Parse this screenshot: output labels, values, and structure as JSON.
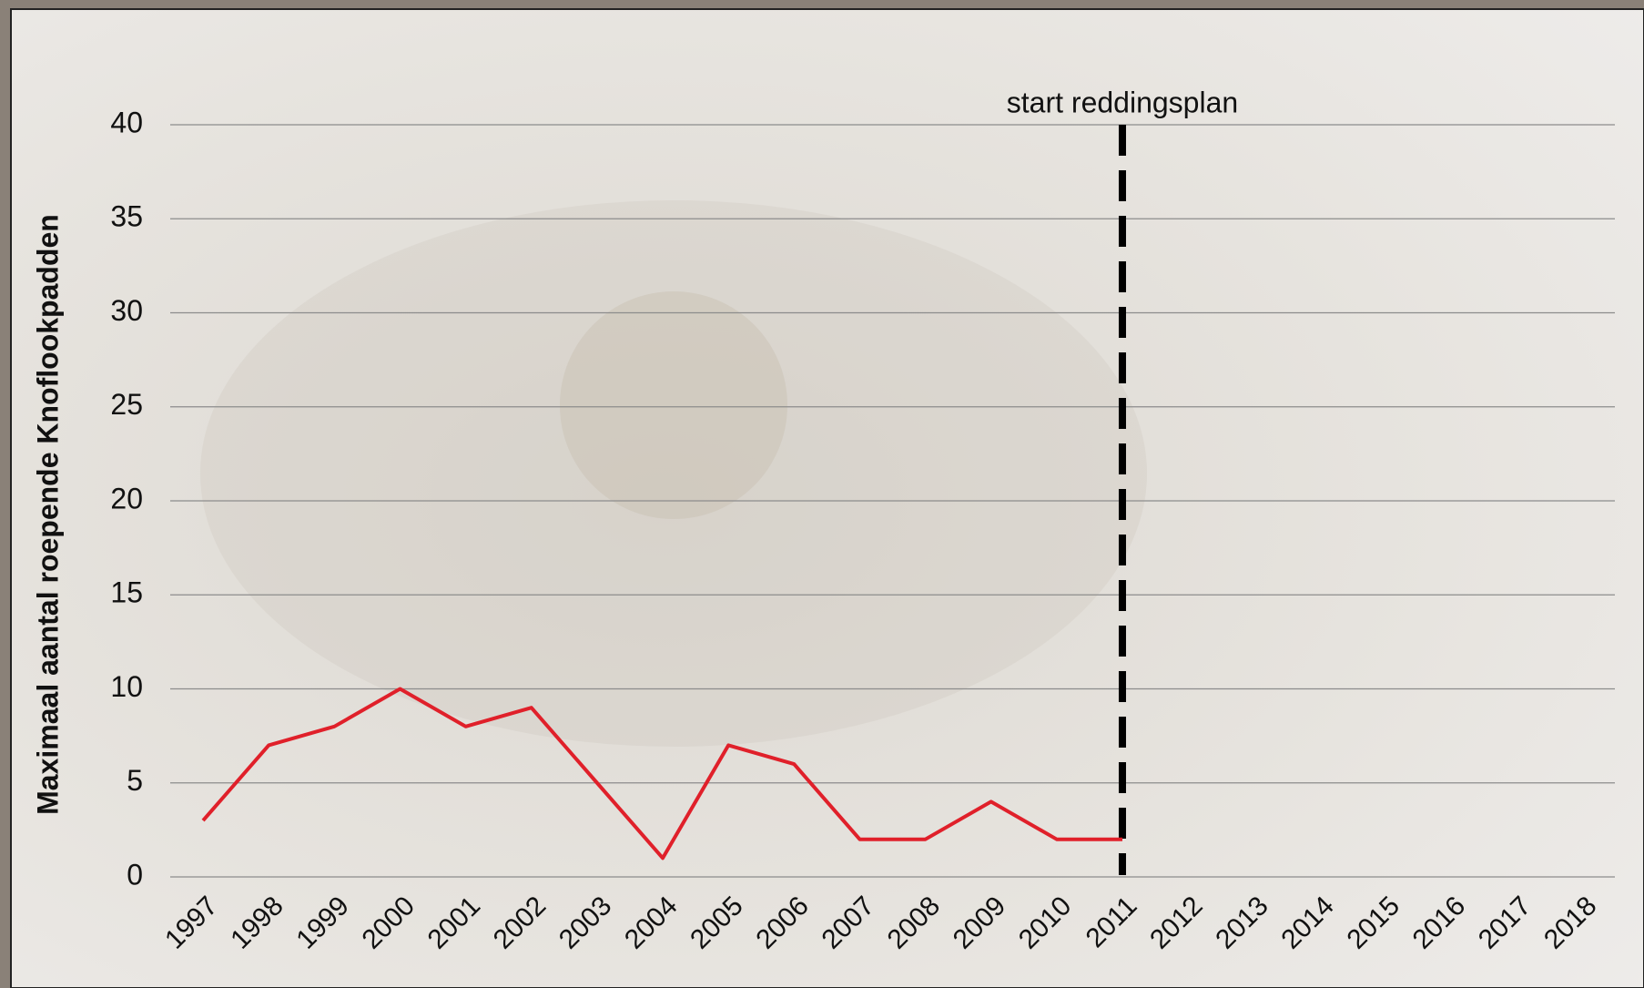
{
  "chart_data": {
    "type": "line",
    "y_label": "Maximaal aantal roepende Knoflookpadden",
    "categories": [
      "1997",
      "1998",
      "1999",
      "2000",
      "2001",
      "2002",
      "2003",
      "2004",
      "2005",
      "2006",
      "2007",
      "2008",
      "2009",
      "2010",
      "2011",
      "2012",
      "2013",
      "2014",
      "2015",
      "2016",
      "2017",
      "2018"
    ],
    "values": [
      3,
      7,
      8,
      10,
      8,
      9,
      5,
      1,
      7,
      6,
      2,
      2,
      4,
      2,
      2,
      null,
      null,
      null,
      null,
      null,
      null,
      null
    ],
    "color": "#e0202a",
    "ylim": [
      0,
      40
    ],
    "yticks": [
      0,
      5,
      10,
      15,
      20,
      25,
      30,
      35,
      40
    ],
    "grid": true,
    "annotation": {
      "text": "start reddingsplan",
      "x": "2011"
    }
  }
}
